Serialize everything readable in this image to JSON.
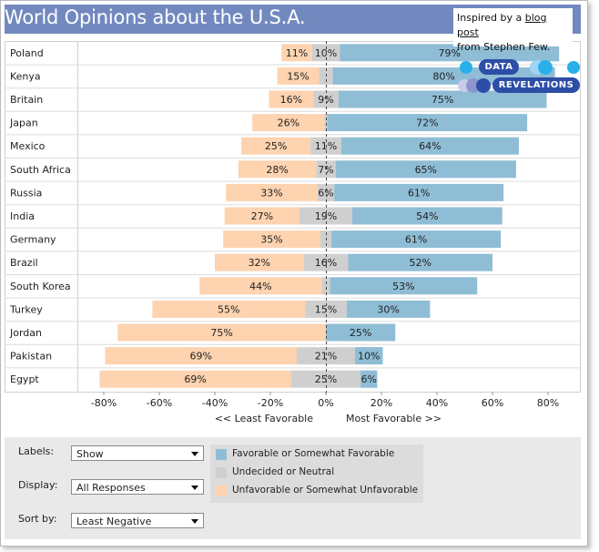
{
  "title": "World Opinions about the U.S.A.",
  "colors": {
    "favorable": "#8fbdd6",
    "neutral": "#cfcfcf",
    "unfavorable": "#fdd3b0",
    "title_bar": "#7289bf",
    "logo_blue": "#2d4ea6",
    "logo_cyan": "#29b0eb"
  },
  "chart_data": {
    "type": "bar",
    "orientation": "horizontal-diverging",
    "categories": [
      "Poland",
      "Kenya",
      "Britain",
      "Japan",
      "Mexico",
      "South Africa",
      "Russia",
      "India",
      "Germany",
      "Brazil",
      "South Korea",
      "Turkey",
      "Jordan",
      "Pakistan",
      "Egypt"
    ],
    "series": [
      {
        "name": "Favorable or Somewhat Favorable",
        "values": [
          79,
          80,
          75,
          72,
          64,
          65,
          61,
          54,
          61,
          52,
          53,
          30,
          25,
          10,
          6
        ]
      },
      {
        "name": "Undecided or Neutral",
        "values": [
          10,
          5,
          9,
          1,
          11,
          7,
          6,
          19,
          4,
          16,
          3,
          15,
          0,
          21,
          25
        ]
      },
      {
        "name": "Unfavorable or Somewhat Unfavorable",
        "values": [
          11,
          15,
          16,
          26,
          25,
          28,
          33,
          27,
          35,
          32,
          44,
          55,
          75,
          69,
          69
        ]
      }
    ],
    "neutral_labels": [
      "10%",
      "",
      "9%",
      "",
      "11%",
      "7%",
      "6%",
      "19%",
      "",
      "16%",
      "",
      "15%",
      "",
      "21%",
      "25%"
    ],
    "xlim": [
      -90,
      90
    ],
    "x_ticks": [
      "-80%",
      "-60%",
      "-40%",
      "-20%",
      "0%",
      "20%",
      "40%",
      "60%",
      "80%"
    ],
    "x_tick_values": [
      -80,
      -60,
      -40,
      -20,
      0,
      20,
      40,
      60,
      80
    ],
    "axis_caption_left": "<<  Least Favorable",
    "axis_caption_right": "Most Favorable >>",
    "grid": "horizontal row lines",
    "legend_position": "bottom"
  },
  "controls": {
    "labels": {
      "label": "Labels:",
      "value": "Show"
    },
    "display": {
      "label": "Display:",
      "value": "All Responses"
    },
    "sort_by": {
      "label": "Sort by:",
      "value": "Least Negative"
    }
  },
  "legend": [
    {
      "label": "Favorable or Somewhat Favorable",
      "color": "#8fbdd6"
    },
    {
      "label": "Undecided or Neutral",
      "color": "#cfcfcf"
    },
    {
      "label": "Unfavorable or Somewhat Unfavorable",
      "color": "#fdd3b0"
    }
  ],
  "credit": {
    "prefix": "Inspired by a ",
    "link": "blog post",
    "suffix": "from Stephen Few."
  },
  "logo": {
    "word1": "DATA",
    "word2": "REVELATIONS"
  }
}
